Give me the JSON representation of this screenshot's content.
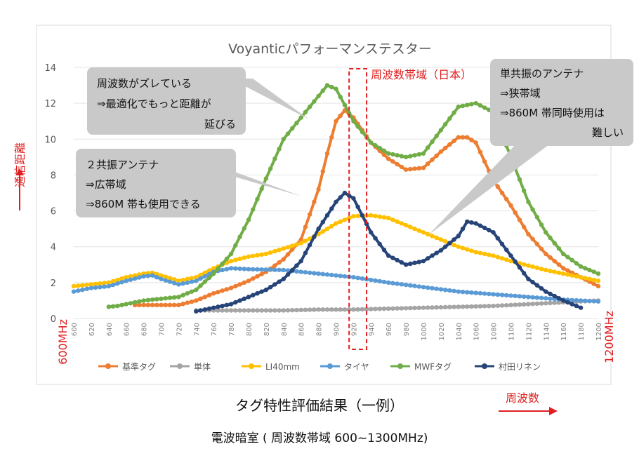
{
  "chart_data": {
    "type": "line",
    "title": "Voyanticパフォーマンステスター",
    "ylabel": "通信距離",
    "xlabel": "周波数",
    "ylim": [
      0,
      14
    ],
    "yticks": [
      0,
      2,
      4,
      6,
      8,
      10,
      12,
      14
    ],
    "xlim": [
      600,
      1200
    ],
    "xticks": [
      600,
      620,
      640,
      660,
      680,
      700,
      720,
      740,
      760,
      780,
      800,
      820,
      840,
      860,
      880,
      900,
      920,
      940,
      960,
      980,
      1000,
      1020,
      1040,
      1060,
      1080,
      1100,
      1120,
      1140,
      1160,
      1180,
      1200
    ],
    "x_start_label": "600MHz",
    "x_end_label": "1200MHz",
    "band_label": "周波数帯域（日本）",
    "band_range": [
      915,
      935
    ],
    "series": [
      {
        "name": "基準タグ",
        "color": "#ed7d31",
        "points": [
          [
            670,
            0.75
          ],
          [
            700,
            0.75
          ],
          [
            720,
            0.75
          ],
          [
            740,
            1.0
          ],
          [
            760,
            1.4
          ],
          [
            780,
            1.7
          ],
          [
            800,
            2.1
          ],
          [
            820,
            2.6
          ],
          [
            840,
            3.3
          ],
          [
            860,
            4.4
          ],
          [
            880,
            7.2
          ],
          [
            890,
            9.2
          ],
          [
            900,
            11.0
          ],
          [
            910,
            11.6
          ],
          [
            920,
            11.2
          ],
          [
            930,
            10.5
          ],
          [
            940,
            9.8
          ],
          [
            960,
            8.9
          ],
          [
            980,
            8.3
          ],
          [
            1000,
            8.4
          ],
          [
            1020,
            9.3
          ],
          [
            1040,
            10.1
          ],
          [
            1050,
            10.1
          ],
          [
            1060,
            9.8
          ],
          [
            1080,
            7.7
          ],
          [
            1100,
            6.3
          ],
          [
            1120,
            4.7
          ],
          [
            1140,
            3.6
          ],
          [
            1160,
            2.8
          ],
          [
            1180,
            2.3
          ],
          [
            1200,
            1.8
          ]
        ]
      },
      {
        "name": "単体",
        "color": "#a5a5a5",
        "points": [
          [
            740,
            0.45
          ],
          [
            760,
            0.45
          ],
          [
            800,
            0.45
          ],
          [
            840,
            0.45
          ],
          [
            880,
            0.5
          ],
          [
            920,
            0.5
          ],
          [
            960,
            0.55
          ],
          [
            1000,
            0.6
          ],
          [
            1040,
            0.65
          ],
          [
            1080,
            0.7
          ],
          [
            1120,
            0.8
          ],
          [
            1160,
            0.9
          ],
          [
            1200,
            1.0
          ]
        ]
      },
      {
        "name": "LI40mm",
        "color": "#ffc000",
        "points": [
          [
            600,
            1.8
          ],
          [
            620,
            1.9
          ],
          [
            640,
            2.0
          ],
          [
            660,
            2.3
          ],
          [
            680,
            2.5
          ],
          [
            690,
            2.55
          ],
          [
            700,
            2.4
          ],
          [
            720,
            2.1
          ],
          [
            740,
            2.3
          ],
          [
            760,
            2.8
          ],
          [
            780,
            3.2
          ],
          [
            800,
            3.45
          ],
          [
            820,
            3.6
          ],
          [
            840,
            3.9
          ],
          [
            860,
            4.2
          ],
          [
            880,
            4.7
          ],
          [
            900,
            5.3
          ],
          [
            920,
            5.7
          ],
          [
            940,
            5.75
          ],
          [
            960,
            5.6
          ],
          [
            980,
            5.2
          ],
          [
            1000,
            4.8
          ],
          [
            1020,
            4.4
          ],
          [
            1040,
            4.0
          ],
          [
            1060,
            3.7
          ],
          [
            1080,
            3.5
          ],
          [
            1100,
            3.2
          ],
          [
            1120,
            2.95
          ],
          [
            1140,
            2.7
          ],
          [
            1160,
            2.5
          ],
          [
            1180,
            2.3
          ],
          [
            1200,
            2.1
          ]
        ]
      },
      {
        "name": "タイヤ",
        "color": "#5b9bd5",
        "points": [
          [
            600,
            1.5
          ],
          [
            620,
            1.7
          ],
          [
            640,
            1.8
          ],
          [
            660,
            2.1
          ],
          [
            680,
            2.35
          ],
          [
            690,
            2.4
          ],
          [
            700,
            2.2
          ],
          [
            720,
            1.9
          ],
          [
            740,
            2.1
          ],
          [
            760,
            2.6
          ],
          [
            780,
            2.8
          ],
          [
            800,
            2.75
          ],
          [
            840,
            2.7
          ],
          [
            880,
            2.5
          ],
          [
            920,
            2.3
          ],
          [
            960,
            2.0
          ],
          [
            1000,
            1.75
          ],
          [
            1040,
            1.5
          ],
          [
            1080,
            1.35
          ],
          [
            1120,
            1.2
          ],
          [
            1160,
            1.05
          ],
          [
            1200,
            0.95
          ]
        ]
      },
      {
        "name": "MWFタグ",
        "color": "#70ad47",
        "points": [
          [
            640,
            0.65
          ],
          [
            650,
            0.7
          ],
          [
            660,
            0.8
          ],
          [
            680,
            1.0
          ],
          [
            700,
            1.1
          ],
          [
            720,
            1.2
          ],
          [
            740,
            1.6
          ],
          [
            760,
            2.5
          ],
          [
            780,
            3.6
          ],
          [
            800,
            5.5
          ],
          [
            820,
            7.8
          ],
          [
            840,
            10.0
          ],
          [
            860,
            11.2
          ],
          [
            880,
            12.4
          ],
          [
            890,
            13.0
          ],
          [
            900,
            12.8
          ],
          [
            920,
            11.0
          ],
          [
            940,
            9.8
          ],
          [
            960,
            9.2
          ],
          [
            980,
            9.0
          ],
          [
            1000,
            9.2
          ],
          [
            1020,
            10.5
          ],
          [
            1040,
            11.8
          ],
          [
            1060,
            12.0
          ],
          [
            1080,
            11.5
          ],
          [
            1100,
            9.0
          ],
          [
            1120,
            6.5
          ],
          [
            1140,
            4.8
          ],
          [
            1160,
            3.6
          ],
          [
            1180,
            2.9
          ],
          [
            1200,
            2.5
          ]
        ]
      },
      {
        "name": "村田リネン",
        "color": "#264478",
        "points": [
          [
            740,
            0.4
          ],
          [
            760,
            0.6
          ],
          [
            780,
            0.8
          ],
          [
            800,
            1.2
          ],
          [
            820,
            1.6
          ],
          [
            840,
            2.2
          ],
          [
            860,
            3.2
          ],
          [
            880,
            5.0
          ],
          [
            900,
            6.5
          ],
          [
            910,
            7.0
          ],
          [
            920,
            6.7
          ],
          [
            940,
            4.8
          ],
          [
            960,
            3.5
          ],
          [
            980,
            3.0
          ],
          [
            1000,
            3.2
          ],
          [
            1020,
            3.8
          ],
          [
            1040,
            4.6
          ],
          [
            1050,
            5.4
          ],
          [
            1060,
            5.3
          ],
          [
            1080,
            4.8
          ],
          [
            1100,
            3.5
          ],
          [
            1120,
            2.2
          ],
          [
            1140,
            1.5
          ],
          [
            1160,
            1.0
          ],
          [
            1180,
            0.6
          ]
        ]
      }
    ]
  },
  "callouts": {
    "left_top": [
      "周波数がズレている",
      "⇒最適化でもっと距離が",
      "延びる"
    ],
    "left_bottom": [
      "２共振アンテナ",
      "⇒広帯域",
      "⇒860M 帯も使用できる"
    ],
    "right": [
      "単共振のアンテナ",
      "⇒狭帯域",
      "⇒860M 帯同時使用は",
      "難しい"
    ]
  },
  "captions": {
    "main": "タグ特性評価結果（一例）",
    "sub": "電波暗室 ( 周波数帯域 600~1300MHz)"
  },
  "colors": {
    "accent_red": "#e02020",
    "callout_bg": "#c9c9c9"
  }
}
